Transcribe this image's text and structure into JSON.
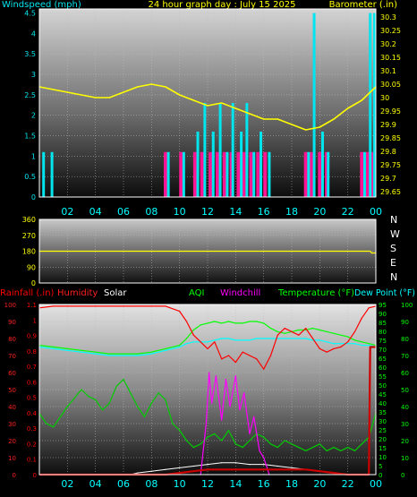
{
  "chart_data": [
    {
      "type": "line",
      "title": "24 hour graph day : July 15 2025",
      "left_axis_label": "Windspeed (mph)",
      "right_axis_label": "Barometer (.in)",
      "x_ticks": [
        "02",
        "04",
        "06",
        "08",
        "10",
        "12",
        "14",
        "16",
        "18",
        "20",
        "22",
        "00"
      ],
      "y_ticks_left": [
        "0",
        "0.5",
        "1",
        "1.5",
        "2",
        "2.5",
        "3",
        "3.5",
        "4",
        "4.5"
      ],
      "y_ticks_right": [
        "29.65",
        "29.7",
        "29.75",
        "29.8",
        "29.85",
        "29.9",
        "29.95",
        "30",
        "30.05",
        "30.1",
        "30.15",
        "30.2",
        "30.25",
        "30.3"
      ],
      "ylim_left": [
        0,
        4.6
      ],
      "ylim_right": [
        29.63,
        30.33
      ],
      "xlim": [
        0,
        24
      ],
      "series": [
        {
          "name": "Barometer (.in)",
          "color": "#ffff00",
          "axis": "right",
          "x": [
            0,
            1,
            2,
            3,
            4,
            5,
            6,
            7,
            8,
            9,
            10,
            11,
            12,
            13,
            14,
            15,
            16,
            17,
            18,
            19,
            20,
            21,
            22,
            23,
            24
          ],
          "y": [
            30.04,
            30.03,
            30.02,
            30.01,
            30.0,
            30.0,
            30.02,
            30.04,
            30.05,
            30.04,
            30.01,
            29.99,
            29.97,
            29.98,
            29.96,
            29.94,
            29.92,
            29.92,
            29.9,
            29.88,
            29.89,
            29.92,
            29.96,
            29.99,
            30.04
          ]
        },
        {
          "name": "Wind speed",
          "color": "#00e5ee",
          "axis": "left",
          "x": [
            0.3,
            0.9,
            9.2,
            10.3,
            11.3,
            11.8,
            12.4,
            12.9,
            13.4,
            13.8,
            14.4,
            14.8,
            15.3,
            15.8,
            16.4,
            19.2,
            19.6,
            20.2,
            20.6,
            23.2,
            23.6,
            23.9
          ],
          "y": [
            1.1,
            1.1,
            1.1,
            1.1,
            1.6,
            2.3,
            1.6,
            2.3,
            1.1,
            2.3,
            1.6,
            2.3,
            1.1,
            1.6,
            1.1,
            1.1,
            4.5,
            1.6,
            1.1,
            1.1,
            4.5,
            4.5
          ]
        },
        {
          "name": "Wind gust",
          "color": "#ff1493",
          "axis": "left",
          "x": [
            9.0,
            10.1,
            11.1,
            11.6,
            12.2,
            12.7,
            13.2,
            13.7,
            14.2,
            14.6,
            15.1,
            15.6,
            16.1,
            19.0,
            19.4,
            20.0,
            20.5,
            23.0,
            23.4,
            23.8
          ],
          "y": [
            1.1,
            1.1,
            1.1,
            1.1,
            1.1,
            1.1,
            1.1,
            1.1,
            1.1,
            1.1,
            1.1,
            1.1,
            1.1,
            1.1,
            1.1,
            1.1,
            1.1,
            1.1,
            1.1,
            1.1
          ]
        }
      ]
    },
    {
      "type": "line",
      "title": "",
      "left_axis_label": "",
      "y_ticks_left": [
        "0",
        "90",
        "180",
        "270",
        "360"
      ],
      "direction_labels": [
        "N",
        "W",
        "S",
        "E",
        "N"
      ],
      "ylim_left": [
        0,
        360
      ],
      "xlim": [
        0,
        24
      ],
      "series": [
        {
          "name": "Wind direction",
          "color": "#ffff00",
          "axis": "left",
          "x": [
            0,
            23.6,
            23.7,
            24
          ],
          "y": [
            180,
            180,
            170,
            170
          ]
        }
      ]
    },
    {
      "type": "line",
      "title": "",
      "header_labels": [
        {
          "text": "Rainfall (.in)",
          "color": "#ff0000"
        },
        {
          "text": "Humidity",
          "color": "#ff2020"
        },
        {
          "text": "Solar",
          "color": "#ffffff"
        },
        {
          "text": "AQI",
          "color": "#00ff00"
        },
        {
          "text": "Windchill",
          "color": "#ff00ff"
        },
        {
          "text": "Temperature (°F)",
          "color": "#00ff00"
        },
        {
          "text": "Dew Point (°F)",
          "color": "#00ffff"
        }
      ],
      "x_ticks": [
        "02",
        "04",
        "06",
        "08",
        "10",
        "12",
        "14",
        "16",
        "18",
        "20",
        "22",
        "00"
      ],
      "y_ticks_far_left": [
        "0",
        "10",
        "20",
        "30",
        "40",
        "50",
        "60",
        "70",
        "80",
        "90",
        "100"
      ],
      "y_ticks_left": [
        "0",
        "0.1",
        "0.2",
        "0.3",
        "0.4",
        "0.5",
        "0.6",
        "0.7",
        "0.8",
        "0.9",
        "1",
        "1.1"
      ],
      "y_ticks_right": [
        "0",
        "5",
        "10",
        "15",
        "20",
        "25",
        "30",
        "35",
        "40",
        "45",
        "50",
        "55",
        "60",
        "65",
        "70",
        "75",
        "80",
        "85",
        "90",
        "95"
      ],
      "y_ticks_far_right": [
        "0",
        "10",
        "20",
        "30",
        "40",
        "50",
        "60",
        "70",
        "80",
        "90",
        "100"
      ],
      "ylim_left": [
        0,
        100
      ],
      "ylim_right": [
        0,
        100
      ],
      "xlim": [
        0,
        24
      ],
      "series": [
        {
          "name": "Humidity",
          "color": "#ff0000",
          "axis": "left",
          "x": [
            0,
            1,
            2,
            3,
            4,
            5,
            6,
            7,
            8,
            9,
            10,
            10.5,
            11,
            11.5,
            12,
            12.5,
            13,
            13.5,
            14,
            14.5,
            15,
            15.5,
            16,
            16.5,
            17,
            17.5,
            18,
            18.5,
            19,
            19.5,
            20,
            20.5,
            21,
            21.5,
            22,
            22.5,
            23,
            23.5,
            24
          ],
          "y": [
            98,
            99,
            99,
            99,
            99,
            99,
            99,
            99,
            99,
            99,
            96,
            90,
            82,
            78,
            74,
            78,
            68,
            70,
            66,
            72,
            70,
            68,
            62,
            70,
            82,
            86,
            84,
            82,
            86,
            80,
            74,
            72,
            74,
            75,
            78,
            84,
            92,
            98,
            99
          ]
        },
        {
          "name": "Temperature (°F)",
          "color": "#00ff00",
          "axis": "right",
          "x": [
            0,
            1,
            2,
            3,
            4,
            5,
            6,
            7,
            8,
            9,
            10,
            10.5,
            11,
            11.5,
            12,
            12.5,
            13,
            13.5,
            14,
            14.5,
            15,
            15.5,
            16,
            16.5,
            17,
            17.5,
            18,
            18.5,
            19,
            19.5,
            20,
            20.5,
            21,
            21.5,
            22,
            22.5,
            23,
            23.5,
            24
          ],
          "y": [
            76,
            75,
            74,
            73,
            72,
            71,
            71,
            71,
            72,
            74,
            76,
            80,
            85,
            88,
            89,
            90,
            89,
            90,
            89,
            89,
            90,
            90,
            89,
            86,
            84,
            83,
            84,
            85,
            85,
            86,
            85,
            84,
            83,
            82,
            81,
            79,
            78,
            77,
            76
          ]
        },
        {
          "name": "Dew Point (°F)",
          "color": "#00ffff",
          "axis": "right",
          "x": [
            0,
            1,
            2,
            3,
            4,
            5,
            6,
            7,
            8,
            9,
            10,
            10.5,
            11,
            11.5,
            12,
            12.5,
            13,
            13.5,
            14,
            14.5,
            15,
            15.5,
            16,
            16.5,
            17,
            17.5,
            18,
            18.5,
            19,
            19.5,
            20,
            20.5,
            21,
            21.5,
            22,
            22.5,
            23,
            23.5,
            24
          ],
          "y": [
            75,
            74,
            73,
            72,
            71,
            70,
            70,
            70,
            71,
            73,
            75,
            77,
            78,
            78,
            78,
            79,
            80,
            80,
            79,
            79,
            79,
            80,
            80,
            80,
            80,
            80,
            80,
            80,
            80,
            79,
            79,
            78,
            77,
            77,
            77,
            77,
            76,
            76,
            75
          ]
        },
        {
          "name": "AQI",
          "color": "#00cc00",
          "axis": "right",
          "x": [
            0,
            0.5,
            1,
            1.5,
            2,
            2.5,
            3,
            3.5,
            4,
            4.5,
            5,
            5.5,
            6,
            6.5,
            7,
            7.5,
            8,
            8.5,
            9,
            9.5,
            10,
            10.5,
            11,
            11.5,
            12,
            12.5,
            13,
            13.5,
            14,
            14.5,
            15,
            15.5,
            16,
            16.5,
            17,
            17.5,
            18,
            18.5,
            19,
            19.5,
            20,
            20.5,
            21,
            21.5,
            22,
            22.5,
            23,
            23.5,
            24
          ],
          "y": [
            36,
            30,
            28,
            34,
            40,
            45,
            50,
            46,
            44,
            38,
            42,
            52,
            56,
            48,
            40,
            34,
            42,
            48,
            44,
            30,
            26,
            20,
            16,
            18,
            22,
            24,
            20,
            26,
            18,
            16,
            20,
            24,
            22,
            18,
            16,
            20,
            18,
            16,
            14,
            16,
            18,
            14,
            16,
            14,
            16,
            14,
            18,
            22,
            36
          ]
        },
        {
          "name": "Windchill",
          "color": "#ff00ff",
          "axis": "right",
          "x": [
            11.5,
            11.9,
            12.1,
            12.3,
            12.6,
            13.0,
            13.3,
            13.6,
            14.0,
            14.3,
            14.6,
            15.0,
            15.3,
            15.7,
            16.0,
            16.4
          ],
          "y": [
            0,
            30,
            60,
            42,
            58,
            32,
            56,
            40,
            58,
            38,
            48,
            24,
            34,
            14,
            10,
            0
          ]
        },
        {
          "name": "Solar",
          "color": "#ffffff",
          "axis": "right",
          "x": [
            6.5,
            7,
            8,
            9,
            10,
            11,
            12,
            13,
            14,
            15,
            16,
            17,
            18,
            19,
            20,
            21,
            22
          ],
          "y": [
            0,
            1,
            2,
            3,
            4,
            5,
            6,
            7,
            7,
            6,
            6,
            5,
            4,
            3,
            2,
            1,
            0
          ]
        },
        {
          "name": "Rainfall (.in)",
          "color": "#cc0000",
          "axis": "left",
          "x": [
            0,
            9,
            10,
            11,
            12,
            13,
            14,
            15,
            16,
            17,
            18,
            19,
            20,
            21,
            22,
            23,
            23.5,
            23.6,
            24
          ],
          "y": [
            0,
            0,
            1,
            2,
            3,
            3,
            3,
            3,
            3,
            3,
            3,
            3,
            2,
            1,
            0,
            0,
            0,
            75,
            75
          ]
        }
      ]
    }
  ]
}
